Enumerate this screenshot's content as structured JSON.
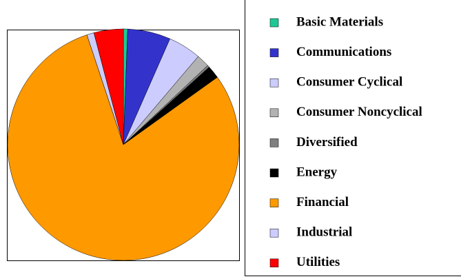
{
  "chart_data": {
    "type": "pie",
    "categories": [
      "Basic Materials",
      "Communications",
      "Consumer Cyclical",
      "Consumer Noncyclical",
      "Diversified",
      "Energy",
      "Financial",
      "Industrial",
      "Utilities"
    ],
    "values": [
      0.6,
      6.0,
      4.6,
      1.8,
      0.3,
      1.8,
      79.8,
      1.0,
      4.1
    ],
    "colors": [
      "#1ec896",
      "#3333cc",
      "#ccccff",
      "#b2b2b2",
      "#808080",
      "#000000",
      "#ff9900",
      "#ccccff",
      "#ff0000"
    ],
    "legend": "right"
  }
}
